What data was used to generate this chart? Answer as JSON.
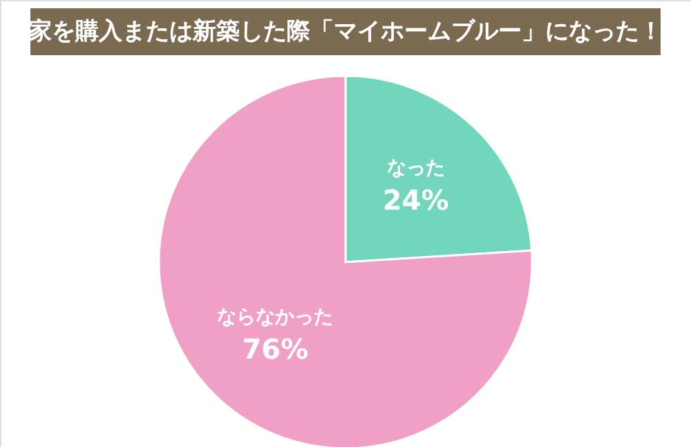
{
  "chart_data": {
    "type": "pie",
    "title": "家を購入または新築した際「マイホームブルー」になった！",
    "categories": [
      "なった",
      "ならなかった"
    ],
    "values": [
      24,
      76
    ],
    "colors": [
      "#72d6bd",
      "#f0a0c5"
    ],
    "value_labels": [
      "24%",
      "76%"
    ]
  }
}
